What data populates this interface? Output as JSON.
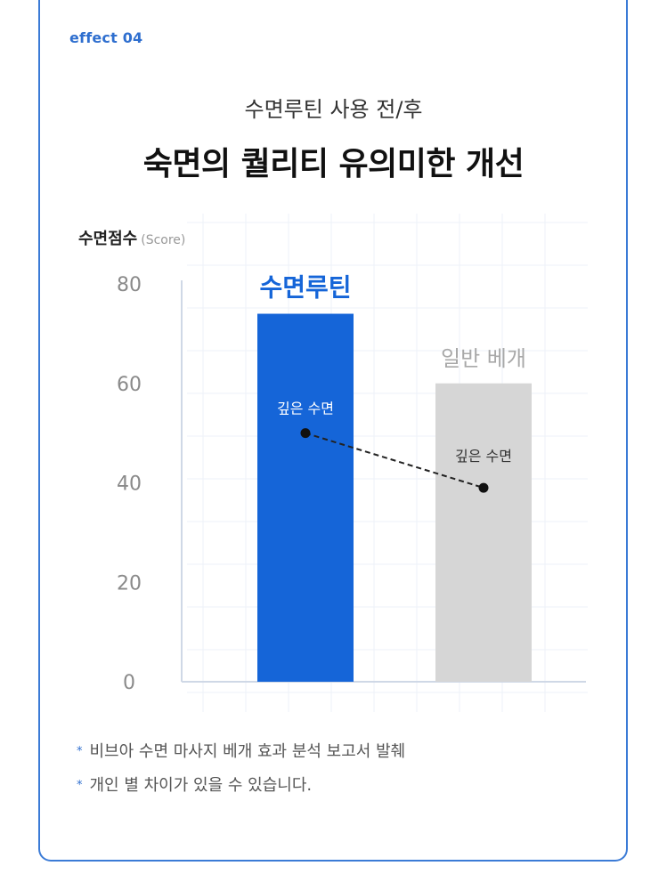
{
  "header": {
    "effect_label": "effect 04",
    "subtitle": "수면루틴 사용 전/후",
    "title": "숙면의 퀄리티 유의미한 개선"
  },
  "chart_data": {
    "type": "bar",
    "ylabel": "수면점수",
    "ylabel_unit": "(Score)",
    "ylim": [
      0,
      80
    ],
    "yticks": [
      0,
      20,
      40,
      60,
      80
    ],
    "categories": [
      "수면루틴",
      "일반 베개"
    ],
    "values": [
      74,
      60
    ],
    "bar_colors": [
      "#1565d8",
      "#d6d6d6"
    ],
    "category_label_colors": [
      "#1565d8",
      "#a8a8a8"
    ],
    "deep_sleep": {
      "label": "깊은 수면",
      "values": [
        50,
        39
      ]
    },
    "grid": true
  },
  "notes": [
    "비브아 수면 마사지 베개 효과 분석 보고서 발췌",
    "개인 별 차이가 있을 수 있습니다."
  ],
  "colors": {
    "accent": "#2f6fcf",
    "border": "#3b7bd6"
  }
}
